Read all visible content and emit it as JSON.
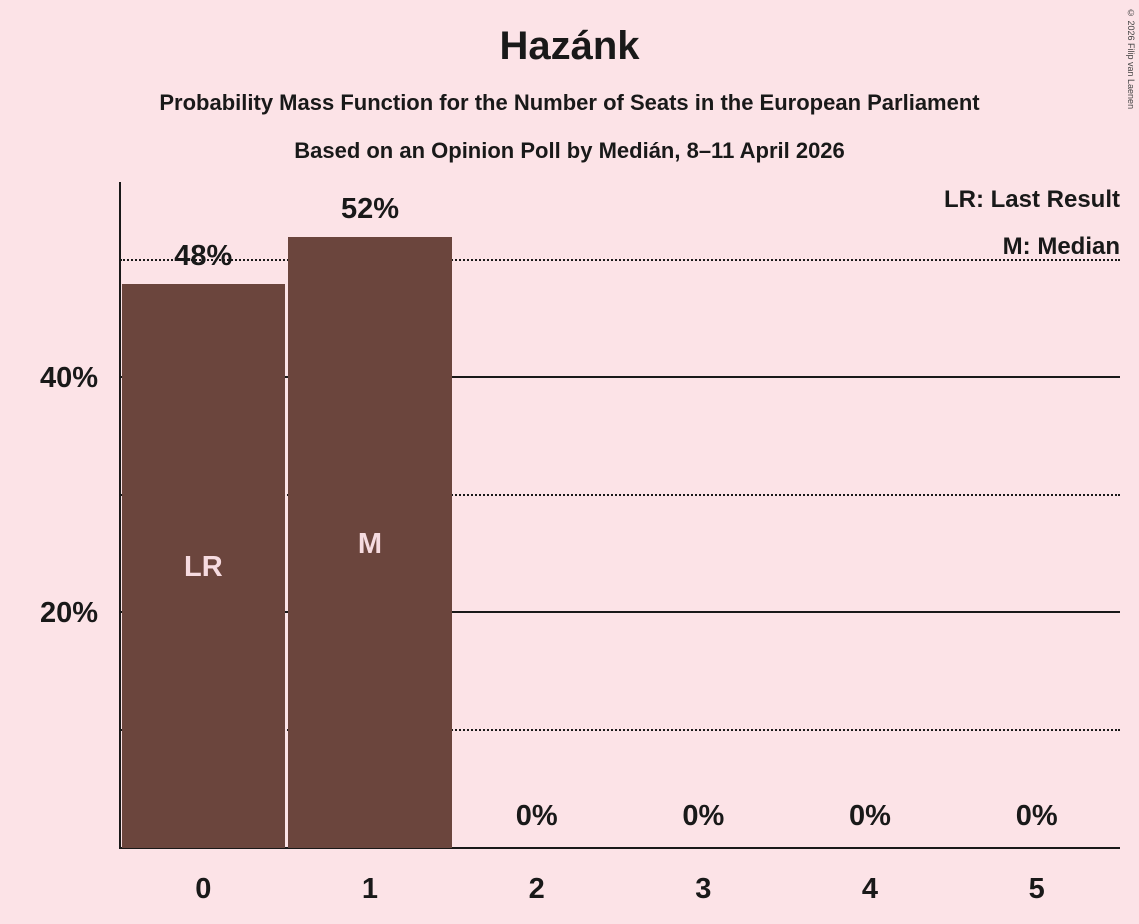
{
  "title": "Hazánk",
  "subtitle1": "Probability Mass Function for the Number of Seats in the European Parliament",
  "subtitle2": "Based on an Opinion Poll by Medián, 8–11 April 2026",
  "copyright": "© 2026 Filip van Laenen",
  "legend": {
    "lr": "LR: Last Result",
    "m": "M: Median"
  },
  "colors": {
    "background": "#fce3e7",
    "bar": "#6b453d",
    "bar_label": "#f6dbe0",
    "text": "#191919"
  },
  "chart_data": {
    "type": "bar",
    "categories": [
      "0",
      "1",
      "2",
      "3",
      "4",
      "5"
    ],
    "values": [
      48,
      52,
      0,
      0,
      0,
      0
    ],
    "value_labels": [
      "48%",
      "52%",
      "0%",
      "0%",
      "0%",
      "0%"
    ],
    "bar_annotations": [
      "LR",
      "M",
      "",
      "",
      "",
      ""
    ],
    "ylim": [
      0,
      56.7
    ],
    "yticks": [
      {
        "value": 20,
        "label": "20%"
      },
      {
        "value": 40,
        "label": "40%"
      }
    ],
    "gridlines": {
      "solid": [
        20,
        40
      ],
      "dotted": [
        10,
        30,
        50
      ]
    },
    "legend_note": "LR = Last Result, M = Median",
    "grid": true,
    "legend_position": "top-right"
  }
}
